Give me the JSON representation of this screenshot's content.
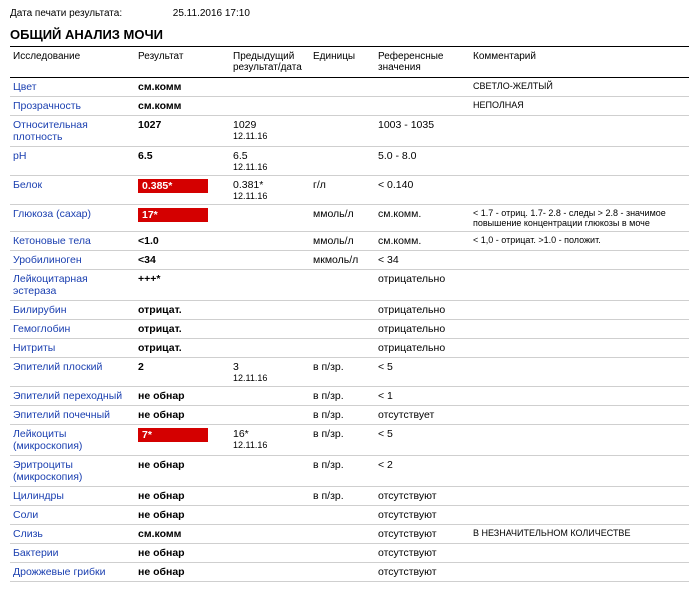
{
  "print_date": {
    "label": "Дата печати результата:",
    "value": "25.11.2016 17:10"
  },
  "title": "ОБЩИЙ АНАЛИЗ МОЧИ",
  "headers": {
    "test": "Исследование",
    "result": "Результат",
    "prev": "Предыдущий результат/дата",
    "units": "Единицы",
    "ref": "Референсные значения",
    "comment": "Комментарий"
  },
  "rows": [
    {
      "test": "Цвет",
      "result": "см.комм",
      "flag": false,
      "prev": "",
      "prev_date": "",
      "units": "",
      "ref": "",
      "comment": "СВЕТЛО-ЖЕЛТЫЙ"
    },
    {
      "test": "Прозрачность",
      "result": "см.комм",
      "flag": false,
      "prev": "",
      "prev_date": "",
      "units": "",
      "ref": "",
      "comment": "НЕПОЛНАЯ"
    },
    {
      "test": "Относительная плотность",
      "result": "1027",
      "flag": false,
      "prev": "1029",
      "prev_date": "12.11.16",
      "units": "",
      "ref": "1003 - 1035",
      "comment": ""
    },
    {
      "test": "pH",
      "result": "6.5",
      "flag": false,
      "prev": "6.5",
      "prev_date": "12.11.16",
      "units": "",
      "ref": "5.0 - 8.0",
      "comment": ""
    },
    {
      "test": "Белок",
      "result": "0.385*",
      "flag": true,
      "prev": "0.381*",
      "prev_date": "12.11.16",
      "units": "г/л",
      "ref": "< 0.140",
      "comment": ""
    },
    {
      "test": "Глюкоза (сахар)",
      "result": "17*",
      "flag": true,
      "prev": "",
      "prev_date": "",
      "units": "ммоль/л",
      "ref": "см.комм.",
      "comment": "< 1.7 - отриц. 1.7- 2.8 - следы > 2.8 - значимое повышение концентрации глюкозы в моче"
    },
    {
      "test": "Кетоновые тела",
      "result": "<1.0",
      "flag": false,
      "prev": "",
      "prev_date": "",
      "units": "ммоль/л",
      "ref": "см.комм.",
      "comment": "< 1,0 - отрицат. >1.0 - положит."
    },
    {
      "test": "Уробилиноген",
      "result": "<34",
      "flag": false,
      "prev": "",
      "prev_date": "",
      "units": "мкмоль/л",
      "ref": "< 34",
      "comment": ""
    },
    {
      "test": "Лейкоцитарная эстераза",
      "result": "+++*",
      "flag": false,
      "prev": "",
      "prev_date": "",
      "units": "",
      "ref": "отрицательно",
      "comment": ""
    },
    {
      "test": "Билирубин",
      "result": "отрицат.",
      "flag": false,
      "prev": "",
      "prev_date": "",
      "units": "",
      "ref": "отрицательно",
      "comment": ""
    },
    {
      "test": "Гемоглобин",
      "result": "отрицат.",
      "flag": false,
      "prev": "",
      "prev_date": "",
      "units": "",
      "ref": "отрицательно",
      "comment": ""
    },
    {
      "test": "Нитриты",
      "result": "отрицат.",
      "flag": false,
      "prev": "",
      "prev_date": "",
      "units": "",
      "ref": "отрицательно",
      "comment": ""
    },
    {
      "test": "Эпителий плоский",
      "result": "2",
      "flag": false,
      "prev": "3",
      "prev_date": "12.11.16",
      "units": "в п/зр.",
      "ref": "< 5",
      "comment": ""
    },
    {
      "test": "Эпителий переходный",
      "result": "не обнар",
      "flag": false,
      "prev": "",
      "prev_date": "",
      "units": "в п/зр.",
      "ref": "< 1",
      "comment": ""
    },
    {
      "test": "Эпителий почечный",
      "result": "не обнар",
      "flag": false,
      "prev": "",
      "prev_date": "",
      "units": "в п/зр.",
      "ref": "отсутствует",
      "comment": ""
    },
    {
      "test": "Лейкоциты (микроскопия)",
      "result": "7*",
      "flag": true,
      "prev": "16*",
      "prev_date": "12.11.16",
      "units": "в п/зр.",
      "ref": "< 5",
      "comment": ""
    },
    {
      "test": "Эритроциты (микроскопия)",
      "result": "не обнар",
      "flag": false,
      "prev": "",
      "prev_date": "",
      "units": "в п/зр.",
      "ref": "< 2",
      "comment": ""
    },
    {
      "test": "Цилиндры",
      "result": "не обнар",
      "flag": false,
      "prev": "",
      "prev_date": "",
      "units": "в п/зр.",
      "ref": "отсутствуют",
      "comment": ""
    },
    {
      "test": "Соли",
      "result": "не обнар",
      "flag": false,
      "prev": "",
      "prev_date": "",
      "units": "",
      "ref": "отсутствуют",
      "comment": ""
    },
    {
      "test": "Слизь",
      "result": "см.комм",
      "flag": false,
      "prev": "",
      "prev_date": "",
      "units": "",
      "ref": "отсутствуют",
      "comment": "В НЕЗНАЧИТЕЛЬНОМ КОЛИЧЕСТВЕ"
    },
    {
      "test": "Бактерии",
      "result": "не обнар",
      "flag": false,
      "prev": "",
      "prev_date": "",
      "units": "",
      "ref": "отсутствуют",
      "comment": ""
    },
    {
      "test": "Дрожжевые грибки",
      "result": "не обнар",
      "flag": false,
      "prev": "",
      "prev_date": "",
      "units": "",
      "ref": "отсутствуют",
      "comment": ""
    }
  ]
}
